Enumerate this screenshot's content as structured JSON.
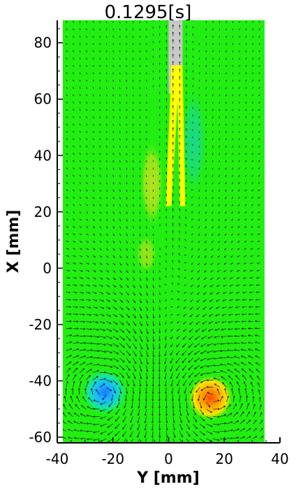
{
  "time_label": "0.1295[s]",
  "chart_data": {
    "type": "vector-field",
    "xlabel": "Y [mm]",
    "ylabel": "X [mm]",
    "xlim": [
      -40,
      40
    ],
    "ylim": [
      -62,
      88
    ],
    "x_ticks": [
      -40,
      -20,
      0,
      20,
      40
    ],
    "y_ticks": [
      -60,
      -40,
      -20,
      0,
      20,
      40,
      60,
      80
    ],
    "data_extent": {
      "y_mm": [
        -38,
        34.5
      ],
      "x_mm": [
        -62,
        88
      ]
    },
    "background_color": "#22ee11",
    "vortices": [
      {
        "name": "clockwise",
        "y": -23,
        "x": -44,
        "color": "#1e78ff",
        "sign": -1
      },
      {
        "name": "counter-clockwise",
        "y": 15,
        "x": -46,
        "color": "#ff4a00",
        "sign": 1
      }
    ],
    "wake_regions": [
      {
        "side": "left",
        "y": -6,
        "x": 30,
        "color": "#bfe226"
      },
      {
        "side": "right",
        "y": 9,
        "x": 45,
        "color": "#20d878"
      }
    ],
    "flap": {
      "support_color": "#c8c8c8",
      "blade_color": "#ffff00",
      "support_y": [
        0,
        5
      ],
      "support_x": [
        62,
        88
      ],
      "blade_left": [
        [
          1,
          72
        ],
        [
          4,
          72
        ],
        [
          1,
          22
        ],
        [
          -1,
          22
        ]
      ],
      "blade_right": [
        [
          3,
          72
        ],
        [
          5,
          72
        ],
        [
          6,
          22
        ],
        [
          4,
          22
        ]
      ]
    }
  }
}
